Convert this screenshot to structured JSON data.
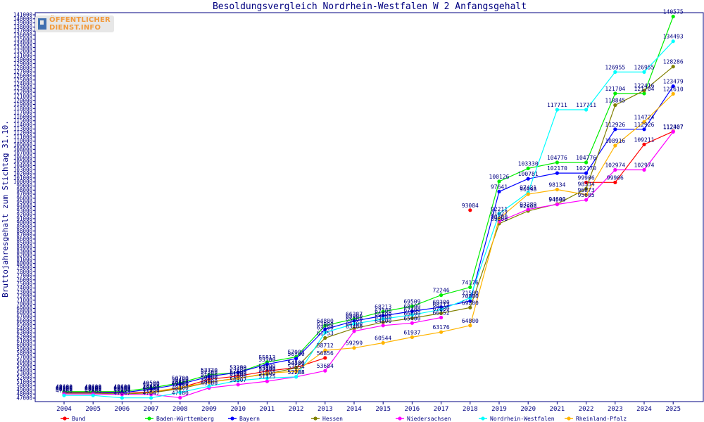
{
  "chart_data": {
    "type": "line",
    "title": "Besoldungsvergleich Nordrhein-Westfalen W 2 Anfangsgehalt",
    "ylabel": "Bruttojahresgehalt zum Stichtag 31.10.",
    "xlabel": "",
    "ylim": [
      47000,
      141000
    ],
    "ytick_step": 1000,
    "grid": false,
    "legend_position": "bottom",
    "categories": [
      "2004",
      "2005",
      "2006",
      "2007",
      "2008",
      "2009",
      "2010",
      "2011",
      "2012",
      "2013",
      "2014",
      "2015",
      "2016",
      "2017",
      "2018",
      "2019",
      "2020",
      "2021",
      "2022",
      "2023",
      "2024",
      "2025"
    ],
    "series": [
      {
        "name": "Bund",
        "color": "#ff0000",
        "values": [
          48440,
          48440,
          48440,
          48440,
          49500,
          51600,
          52400,
          53600,
          54500,
          56856,
          null,
          null,
          null,
          null,
          93084,
          null,
          null,
          null,
          99906,
          99906,
          109211,
          112407
        ]
      },
      {
        "name": "Baden-Württemberg",
        "color": "#00ee00",
        "values": [
          48600,
          48600,
          48600,
          49500,
          50700,
          52720,
          53258,
          55813,
          57085,
          64800,
          66387,
          68213,
          69509,
          72246,
          74176,
          100126,
          103330,
          104776,
          104776,
          121704,
          121704,
          140575
        ]
      },
      {
        "name": "Bayern",
        "color": "#0000ff",
        "values": [
          48300,
          48300,
          48300,
          49200,
          50400,
          52300,
          53300,
          55300,
          56700,
          63900,
          65900,
          67200,
          68300,
          69300,
          70800,
          97641,
          100781,
          102170,
          102170,
          112926,
          112926,
          123479
        ]
      },
      {
        "name": "Hessen",
        "color": "#808000",
        "values": [
          48200,
          48200,
          48000,
          48300,
          49300,
          50900,
          51900,
          52900,
          54400,
          61753,
          64100,
          65600,
          66600,
          67800,
          69200,
          89800,
          92900,
          94600,
          98334,
          118845,
          122416,
          128286
        ]
      },
      {
        "name": "Niedersachsen",
        "color": "#ff00ff",
        "values": [
          48000,
          48000,
          47900,
          47900,
          47100,
          49500,
          50307,
          51125,
          52208,
          53684,
          63400,
          64800,
          65400,
          66752,
          null,
          90300,
          93289,
          94500,
          95605,
          102974,
          102974,
          112307
        ]
      },
      {
        "name": "Nordrhein-Westfalen",
        "color": "#00ffff",
        "values": [
          47660,
          47660,
          47047,
          47047,
          48400,
          49900,
          51300,
          51900,
          52208,
          63100,
          65200,
          66400,
          67400,
          68712,
          71580,
          92211,
          97421,
          117711,
          117711,
          126955,
          126955,
          134493
        ]
      },
      {
        "name": "Rheinland-Pfalz",
        "color": "#ffb400",
        "values": [
          null,
          null,
          null,
          48500,
          49600,
          50900,
          51800,
          53100,
          53554,
          58712,
          59299,
          60544,
          61937,
          63176,
          64800,
          91027,
          96998,
          98134,
          96873,
          108916,
          114724,
          121610
        ]
      }
    ],
    "annotations": [
      "50685",
      "53258",
      "55813",
      "57085",
      "58712",
      "64800",
      "66387",
      "68213",
      "69509",
      "72246",
      "74176",
      "93084",
      "100126",
      "103330",
      "104776",
      "117711",
      "121704",
      "126955",
      "140575",
      "134493",
      "128286",
      "123479",
      "121610",
      "112407",
      "112307",
      "114724",
      "112926",
      "109211",
      "108916",
      "102974",
      "99906",
      "118845",
      "102170",
      "100781",
      "97641",
      "59299",
      "60544",
      "61937",
      "63176",
      "64800",
      "56856",
      "53684",
      "52208",
      "51125",
      "50307",
      "47047",
      "48440"
    ]
  },
  "watermark_text": [
    "ÖFFENTLICHER",
    "DIENST.INFO"
  ]
}
